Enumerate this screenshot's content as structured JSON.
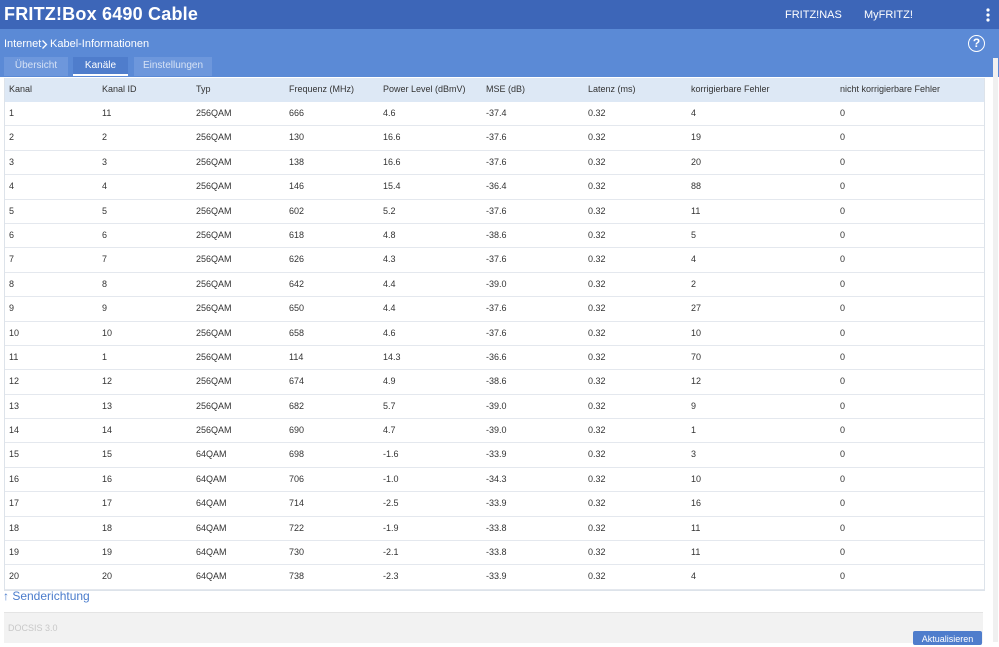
{
  "header": {
    "title": "FRITZ!Box 6490 Cable",
    "nav": [
      "FRITZ!NAS",
      "MyFRITZ!"
    ]
  },
  "breadcrumb": [
    "Internet",
    "Kabel-Informationen"
  ],
  "help": "?",
  "tabs": [
    "Übersicht",
    "Kanäle",
    "Einstellungen"
  ],
  "active_tab": 1,
  "table": {
    "columns": [
      "Kanal",
      "Kanal ID",
      "Typ",
      "Frequenz (MHz)",
      "Power Level (dBmV)",
      "MSE (dB)",
      "Latenz (ms)",
      "korrigierbare Fehler",
      "nicht korrigierbare Fehler"
    ],
    "rows": [
      [
        "1",
        "11",
        "256QAM",
        "666",
        "4.6",
        "-37.4",
        "0.32",
        "4",
        "0"
      ],
      [
        "2",
        "2",
        "256QAM",
        "130",
        "16.6",
        "-37.6",
        "0.32",
        "19",
        "0"
      ],
      [
        "3",
        "3",
        "256QAM",
        "138",
        "16.6",
        "-37.6",
        "0.32",
        "20",
        "0"
      ],
      [
        "4",
        "4",
        "256QAM",
        "146",
        "15.4",
        "-36.4",
        "0.32",
        "88",
        "0"
      ],
      [
        "5",
        "5",
        "256QAM",
        "602",
        "5.2",
        "-37.6",
        "0.32",
        "11",
        "0"
      ],
      [
        "6",
        "6",
        "256QAM",
        "618",
        "4.8",
        "-38.6",
        "0.32",
        "5",
        "0"
      ],
      [
        "7",
        "7",
        "256QAM",
        "626",
        "4.3",
        "-37.6",
        "0.32",
        "4",
        "0"
      ],
      [
        "8",
        "8",
        "256QAM",
        "642",
        "4.4",
        "-39.0",
        "0.32",
        "2",
        "0"
      ],
      [
        "9",
        "9",
        "256QAM",
        "650",
        "4.4",
        "-37.6",
        "0.32",
        "27",
        "0"
      ],
      [
        "10",
        "10",
        "256QAM",
        "658",
        "4.6",
        "-37.6",
        "0.32",
        "10",
        "0"
      ],
      [
        "11",
        "1",
        "256QAM",
        "114",
        "14.3",
        "-36.6",
        "0.32",
        "70",
        "0"
      ],
      [
        "12",
        "12",
        "256QAM",
        "674",
        "4.9",
        "-38.6",
        "0.32",
        "12",
        "0"
      ],
      [
        "13",
        "13",
        "256QAM",
        "682",
        "5.7",
        "-39.0",
        "0.32",
        "9",
        "0"
      ],
      [
        "14",
        "14",
        "256QAM",
        "690",
        "4.7",
        "-39.0",
        "0.32",
        "1",
        "0"
      ],
      [
        "15",
        "15",
        "64QAM",
        "698",
        "-1.6",
        "-33.9",
        "0.32",
        "3",
        "0"
      ],
      [
        "16",
        "16",
        "64QAM",
        "706",
        "-1.0",
        "-34.3",
        "0.32",
        "10",
        "0"
      ],
      [
        "17",
        "17",
        "64QAM",
        "714",
        "-2.5",
        "-33.9",
        "0.32",
        "16",
        "0"
      ],
      [
        "18",
        "18",
        "64QAM",
        "722",
        "-1.9",
        "-33.8",
        "0.32",
        "11",
        "0"
      ],
      [
        "19",
        "19",
        "64QAM",
        "730",
        "-2.1",
        "-33.8",
        "0.32",
        "11",
        "0"
      ],
      [
        "20",
        "20",
        "64QAM",
        "738",
        "-2.3",
        "-33.9",
        "0.32",
        "4",
        "0"
      ]
    ]
  },
  "section_link": "↑ Senderichtung",
  "footer_label": "DOCSIS 3.0",
  "button": "Aktualisieren"
}
